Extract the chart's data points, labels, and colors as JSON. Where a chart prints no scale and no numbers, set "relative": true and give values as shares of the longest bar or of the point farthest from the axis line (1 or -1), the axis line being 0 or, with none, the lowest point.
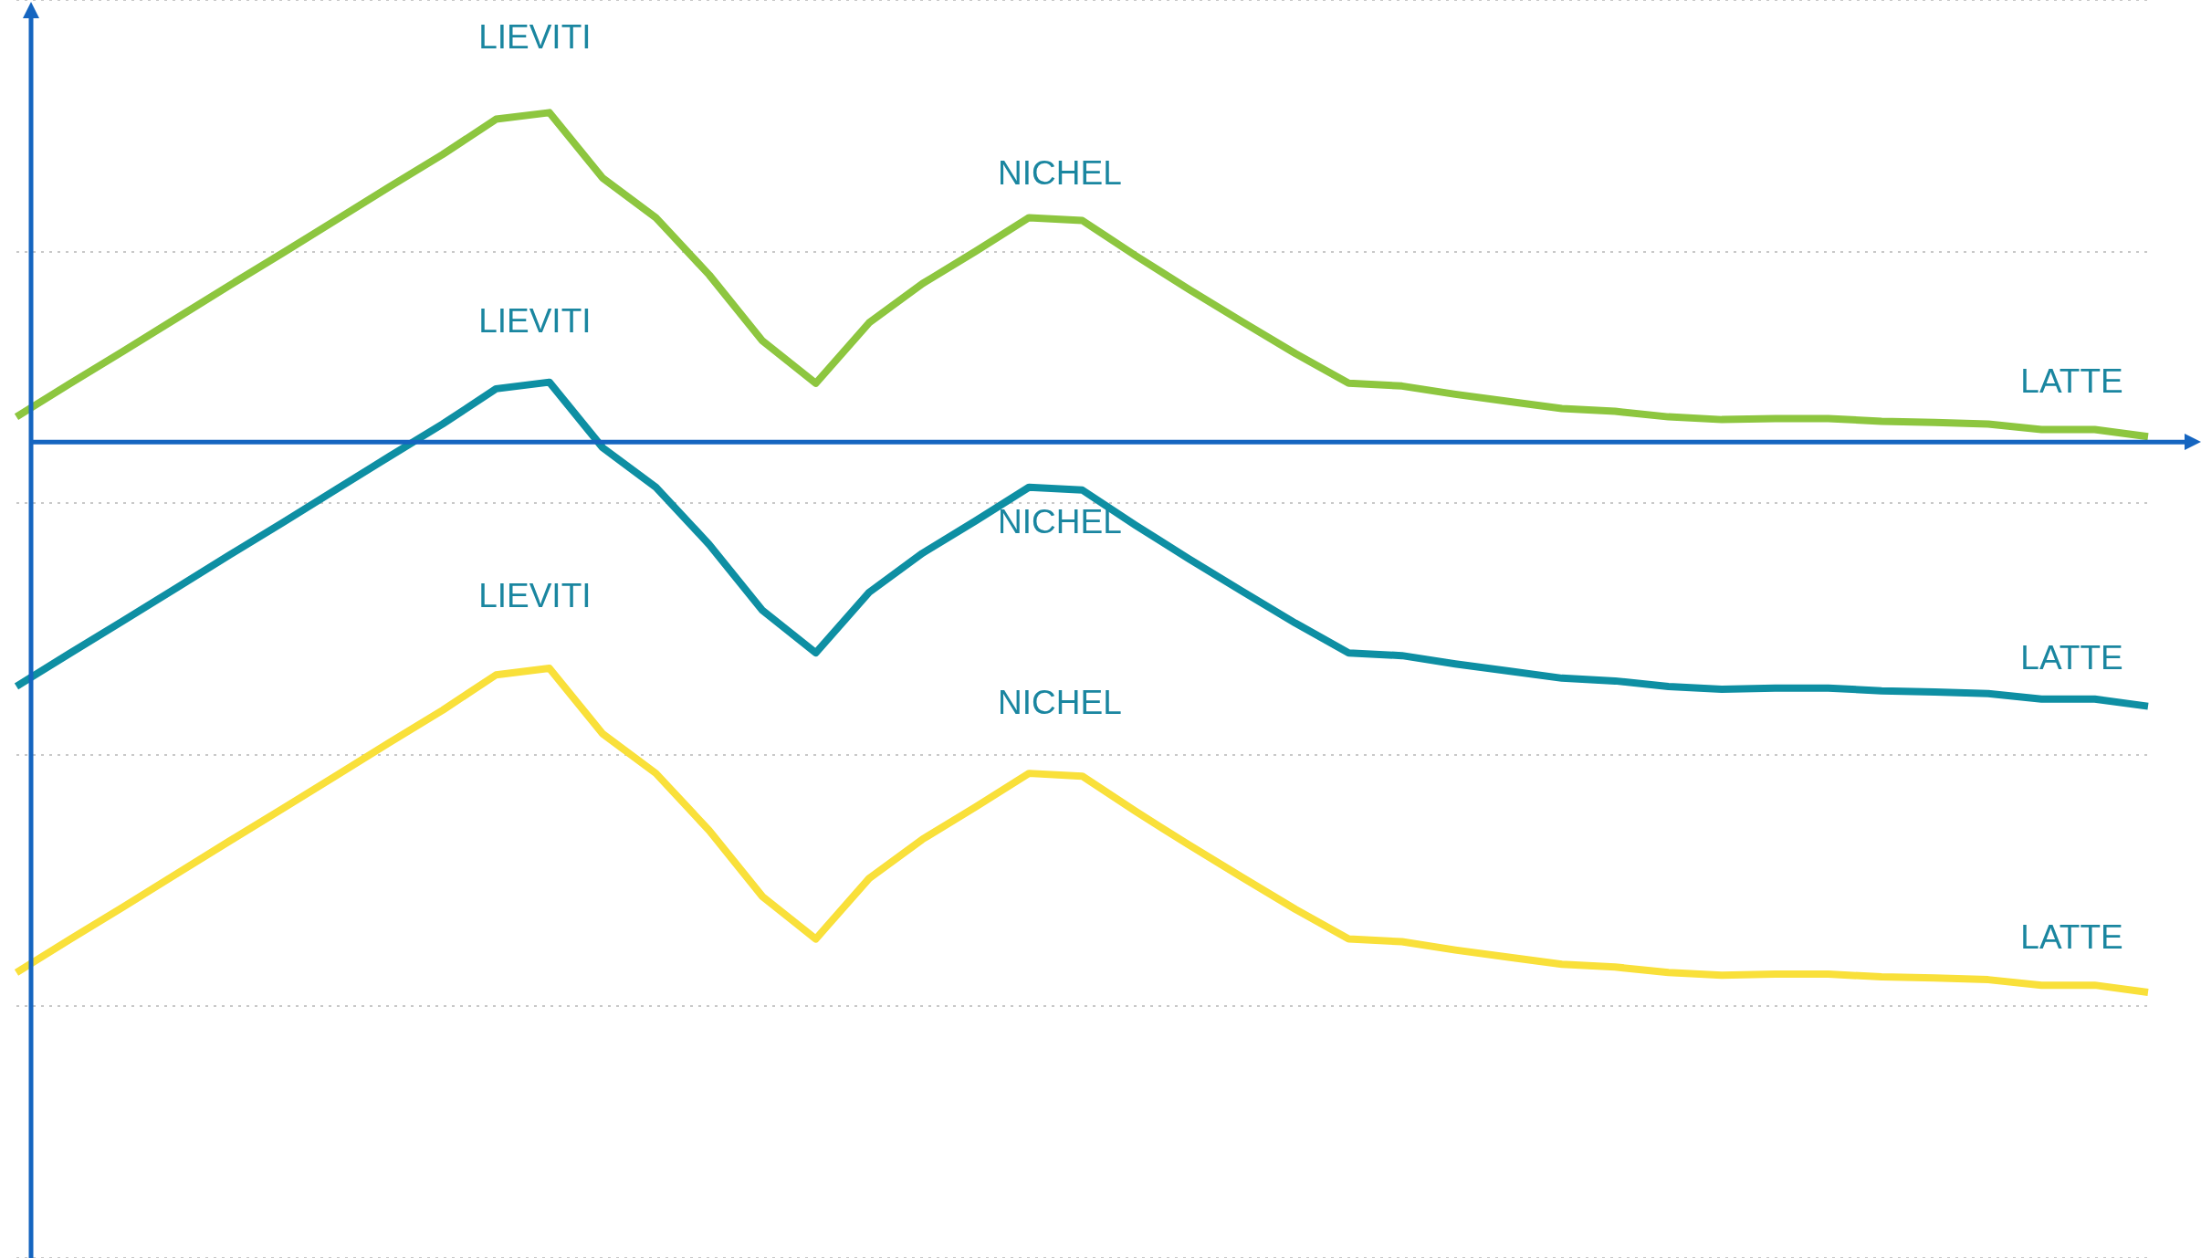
{
  "chart_data": {
    "type": "line",
    "relative": true,
    "grid": "y",
    "ref_lines": [
      {
        "axis": "y",
        "value": 0,
        "color": "#1565c0"
      }
    ],
    "marker": "none",
    "line_style": "solid",
    "categories": [
      null,
      null,
      null,
      null,
      null,
      null,
      null,
      null,
      null,
      null,
      null,
      null,
      null,
      null,
      null,
      null,
      null,
      null,
      null,
      null,
      null,
      null,
      null,
      null,
      null,
      null,
      null,
      null,
      null,
      null,
      null,
      null,
      null,
      null,
      null,
      null,
      null,
      null,
      null,
      null,
      null
    ],
    "series": [
      {
        "color": "#8dc63f",
        "values": [
          0.046,
          0.106,
          0.165,
          0.225,
          0.285,
          0.344,
          0.404,
          0.464,
          0.523,
          0.587,
          0.599,
          0.48,
          0.408,
          0.304,
          0.184,
          0.107,
          0.217,
          0.288,
          0.347,
          0.408,
          0.403,
          0.339,
          0.278,
          0.219,
          0.161,
          0.107,
          0.102,
          0.087,
          0.074,
          0.061,
          0.056,
          0.046,
          0.041,
          0.043,
          0.043,
          0.038,
          0.036,
          0.033,
          0.023,
          0.023,
          0.01
        ]
      },
      {
        "color": "#0e8fa3",
        "values": [
          -0.444,
          -0.384,
          -0.325,
          -0.265,
          -0.205,
          -0.146,
          -0.086,
          -0.026,
          0.033,
          0.097,
          0.109,
          -0.01,
          -0.082,
          -0.186,
          -0.306,
          -0.383,
          -0.273,
          -0.202,
          -0.143,
          -0.082,
          -0.087,
          -0.151,
          -0.212,
          -0.271,
          -0.329,
          -0.383,
          -0.388,
          -0.403,
          -0.416,
          -0.429,
          -0.434,
          -0.444,
          -0.449,
          -0.447,
          -0.447,
          -0.452,
          -0.454,
          -0.457,
          -0.467,
          -0.467,
          -0.48
        ]
      },
      {
        "color": "#f9e03a",
        "values": [
          -0.964,
          -0.904,
          -0.845,
          -0.785,
          -0.725,
          -0.666,
          -0.606,
          -0.546,
          -0.487,
          -0.423,
          -0.411,
          -0.53,
          -0.602,
          -0.706,
          -0.826,
          -0.903,
          -0.793,
          -0.722,
          -0.663,
          -0.602,
          -0.607,
          -0.671,
          -0.732,
          -0.791,
          -0.849,
          -0.903,
          -0.908,
          -0.923,
          -0.936,
          -0.949,
          -0.954,
          -0.964,
          -0.969,
          -0.967,
          -0.967,
          -0.972,
          -0.974,
          -0.977,
          -0.987,
          -0.987,
          -1.0
        ]
      }
    ],
    "annotations": [
      "LIEVITI",
      "NICHEL",
      "LATTE",
      "LIEVITI",
      "NICHEL",
      "LATTE",
      "LIEVITI",
      "NICHEL",
      "LATTE"
    ]
  }
}
